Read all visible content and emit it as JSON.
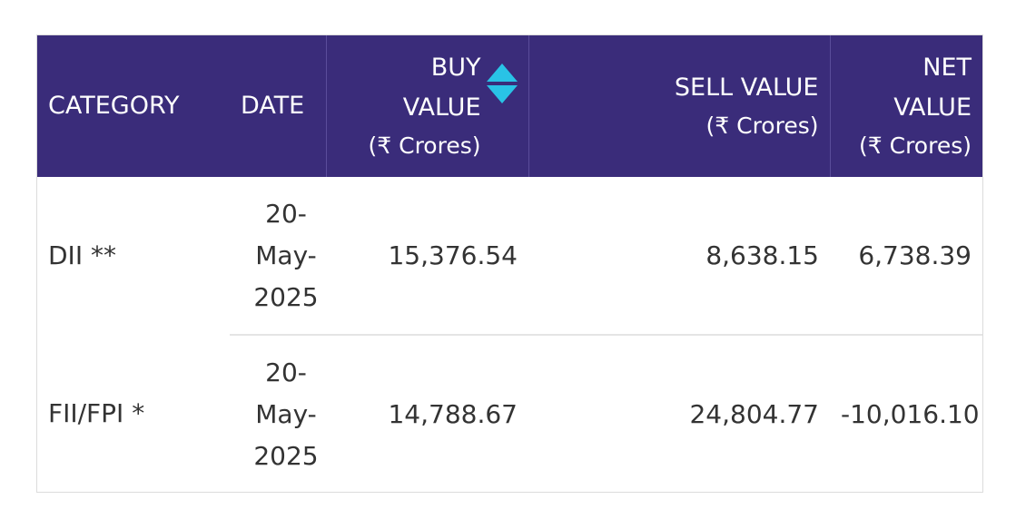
{
  "table": {
    "headers": {
      "category": "CATEGORY",
      "date": "DATE",
      "buy": "BUY VALUE",
      "buy_unit": "(₹ Crores)",
      "sell": "SELL VALUE",
      "sell_unit": "(₹ Crores)",
      "net": "NET VALUE",
      "net_unit": "(₹ Crores)"
    },
    "sort_icon": "sort-up-down-icon",
    "header_bg": "#3a2c7a",
    "accent": "#29c3e6",
    "rows": [
      {
        "category": "DII **",
        "date": "20-May-2025",
        "buy": "15,376.54",
        "sell": "8,638.15",
        "net": "6,738.39"
      },
      {
        "category": "FII/FPI *",
        "date": "20-May-2025",
        "buy": "14,788.67",
        "sell": "24,804.77",
        "net": "-10,016.10"
      }
    ]
  }
}
